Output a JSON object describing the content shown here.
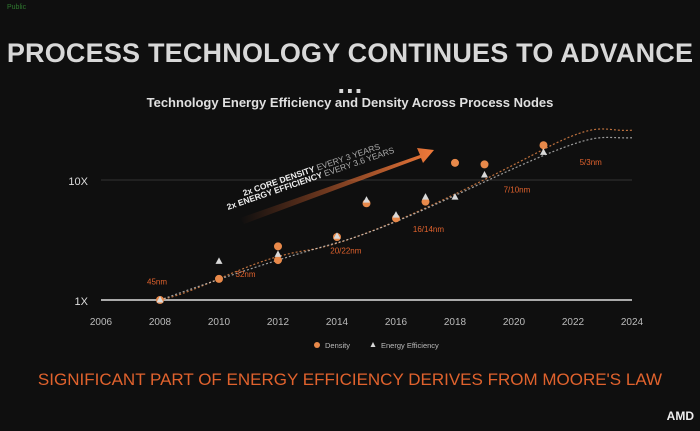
{
  "slide": {
    "classification_tag": "Public",
    "title": "PROCESS TECHNOLOGY CONTINUES TO ADVANCE …",
    "footer": "SIGNIFICANT PART OF ENERGY EFFICIENCY DERIVES FROM MOORE'S LAW",
    "logo": "AMD"
  },
  "chart_data": {
    "type": "scatter",
    "title": "Technology Energy Efficiency and Density Across Process Nodes",
    "x_ticks": [
      "2006",
      "2008",
      "2010",
      "2012",
      "2014",
      "2016",
      "2018",
      "2020",
      "2022",
      "2024"
    ],
    "xlim": [
      2006,
      2024
    ],
    "y_scale": "log",
    "y_ticks": [
      {
        "value": 1,
        "label": "1X"
      },
      {
        "value": 10,
        "label": "10X"
      }
    ],
    "grid": "horizontal at 10X",
    "legend_placement": "bottom",
    "colors": {
      "density": "#e8894a",
      "energy": "#d8d8d8",
      "accent": "#e0622d"
    },
    "series": [
      {
        "name": "Density",
        "marker": "circle",
        "points": [
          [
            2008,
            1
          ],
          [
            2010,
            1.5
          ],
          [
            2012,
            2.8
          ],
          [
            2012,
            2.15
          ],
          [
            2014,
            3.35
          ],
          [
            2015,
            6.4
          ],
          [
            2016,
            4.8
          ],
          [
            2017,
            6.6
          ],
          [
            2018,
            13.9
          ],
          [
            2019,
            13.5
          ],
          [
            2021,
            19.5
          ]
        ]
      },
      {
        "name": "Energy Efficiency",
        "marker": "triangle",
        "points": [
          [
            2008,
            1
          ],
          [
            2010,
            2.1
          ],
          [
            2012,
            2.4
          ],
          [
            2014,
            3.4
          ],
          [
            2015,
            6.8
          ],
          [
            2016,
            5.1
          ],
          [
            2017,
            7.2
          ],
          [
            2018,
            7.2
          ],
          [
            2019,
            11
          ],
          [
            2021,
            17
          ]
        ]
      }
    ],
    "node_labels": [
      {
        "text": "45nm",
        "x": 2007.9,
        "y": 1.35
      },
      {
        "text": "32nm",
        "x": 2010.9,
        "y": 1.55
      },
      {
        "text": "20/22nm",
        "x": 2014.3,
        "y": 2.45
      },
      {
        "text": "16/14nm",
        "x": 2017.1,
        "y": 3.7
      },
      {
        "text": "7/10nm",
        "x": 2020.1,
        "y": 7.9
      },
      {
        "text": "5/3nm",
        "x": 2022.6,
        "y": 13.3
      }
    ],
    "annotation": {
      "line1_bold": "2x CORE DENSITY",
      "line1_rest": " EVERY 3 YEARS",
      "line2_bold": "2x ENERGY EFFICIENCY",
      "line2_rest": " EVERY 3.6 YEARS"
    }
  }
}
